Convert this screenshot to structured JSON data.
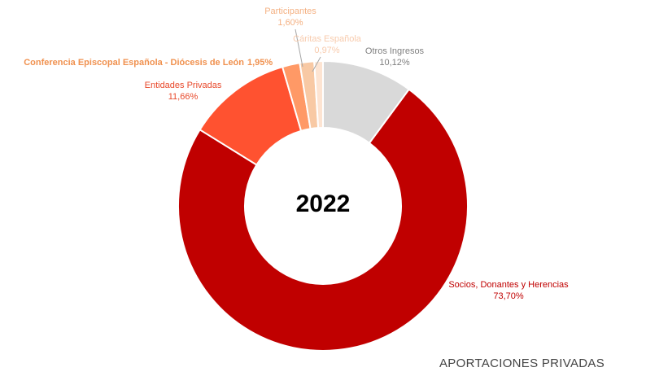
{
  "caption": "APORTACIONES PRIVADAS",
  "chart_data": {
    "type": "pie",
    "center_label": "2022",
    "start_angle_deg": 0,
    "slices": [
      {
        "name": "Otros Ingresos",
        "value": 10.12,
        "value_label": "10,12%",
        "color": "#d9d9d9",
        "label_color": "#7f7f7f"
      },
      {
        "name": "Socios, Donantes y Herencias",
        "value": 73.7,
        "value_label": "73,70%",
        "color": "#c00000",
        "label_color": "#c00000"
      },
      {
        "name": "Entidades Privadas",
        "value": 11.66,
        "value_label": "11,66%",
        "color": "#ff5230",
        "label_color": "#e8482a"
      },
      {
        "name": "Conferencia Episcopal Española - Diócesis de León",
        "value": 1.95,
        "value_label": "1,95%",
        "color": "#ff9966",
        "label_color": "#f0914f"
      },
      {
        "name": "Participantes",
        "value": 1.6,
        "value_label": "1,60%",
        "color": "#f8c9a4",
        "label_color": "#f4b183"
      },
      {
        "name": "Cáritas Española",
        "value": 0.97,
        "value_label": "0,97%",
        "color": "#fde4d2",
        "label_color": "#f8cbad"
      }
    ]
  }
}
